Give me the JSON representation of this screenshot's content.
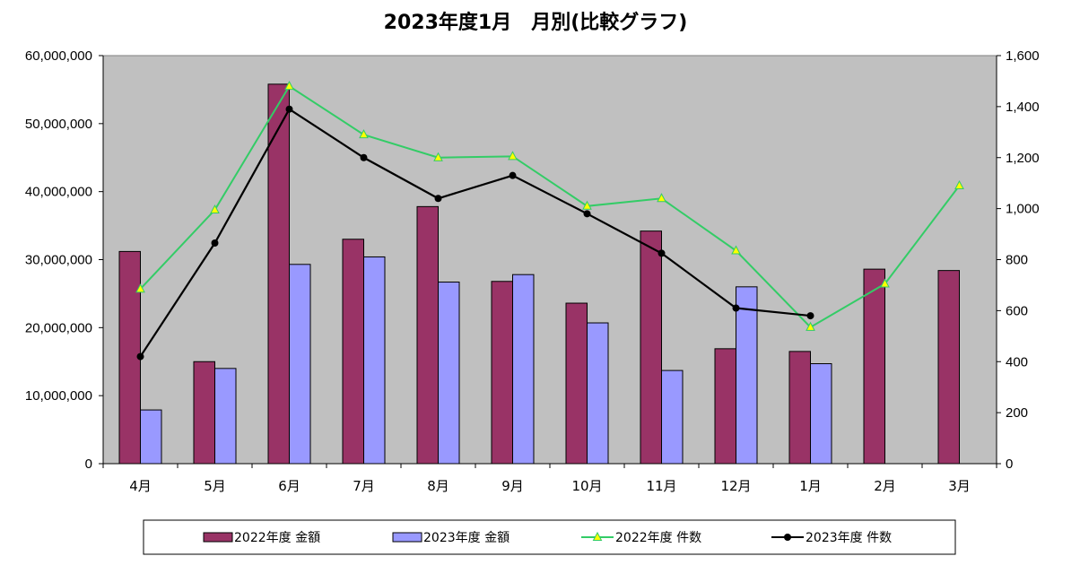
{
  "chart_data": {
    "type": "bar",
    "title": "2023年度1月　月別(比較グラフ)",
    "categories": [
      "4月",
      "5月",
      "6月",
      "7月",
      "8月",
      "9月",
      "10月",
      "11月",
      "12月",
      "1月",
      "2月",
      "3月"
    ],
    "y_left": {
      "min": 0,
      "max": 60000000,
      "ticks": [
        "0",
        "10,000,000",
        "20,000,000",
        "30,000,000",
        "40,000,000",
        "50,000,000",
        "60,000,000"
      ]
    },
    "y_right": {
      "min": 0,
      "max": 1600,
      "ticks": [
        "0",
        "200",
        "400",
        "600",
        "800",
        "1,000",
        "1,200",
        "1,400",
        "1,600"
      ]
    },
    "series": [
      {
        "name": "2022年度 金額",
        "kind": "bar",
        "axis": "left",
        "color": "#993366",
        "values": [
          31200000,
          15000000,
          55800000,
          33000000,
          37800000,
          26800000,
          23600000,
          34200000,
          16900000,
          16500000,
          28600000,
          28400000
        ]
      },
      {
        "name": "2023年度 金額",
        "kind": "bar",
        "axis": "left",
        "color": "#9999ff",
        "values": [
          7900000,
          14000000,
          29300000,
          30400000,
          26700000,
          27800000,
          20700000,
          13700000,
          26000000,
          14700000,
          null,
          null
        ]
      },
      {
        "name": "2022年度 件数",
        "kind": "line",
        "axis": "right",
        "color": "#33cc66",
        "marker": "triangle",
        "marker_color": "#ffff00",
        "values": [
          685,
          995,
          1480,
          1290,
          1200,
          1205,
          1010,
          1040,
          835,
          535,
          705,
          1090
        ]
      },
      {
        "name": "2023年度 件数",
        "kind": "line",
        "axis": "right",
        "color": "#000000",
        "marker": "circle",
        "values": [
          420,
          865,
          1390,
          1200,
          1040,
          1130,
          980,
          825,
          610,
          580,
          null,
          null
        ]
      }
    ],
    "plot_background": "#c0c0c0",
    "legend_position": "bottom",
    "grid": false
  }
}
